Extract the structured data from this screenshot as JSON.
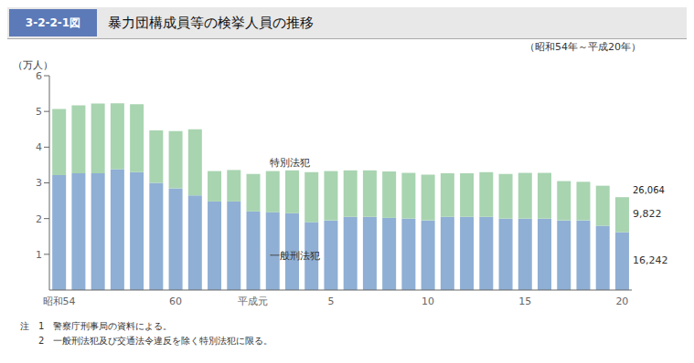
{
  "chart_data": {
    "type": "bar",
    "stacked": true,
    "title": "暴力団構成員等の検挙人員の推移",
    "subtitle": "（昭和54年～平成20年）",
    "y_label": "（万人）",
    "annotations": [
      "3-2-2-1図",
      "注　1　警察庁刑事局の資料による。",
      "　　2　一般刑法犯及び交通法令違反を除く特別法犯に限る。",
      "26,064",
      "9,822",
      "16,242"
    ],
    "categories": [
      "昭和54",
      null,
      null,
      null,
      null,
      null,
      "60",
      null,
      null,
      null,
      "平成元",
      null,
      null,
      null,
      "5",
      null,
      null,
      null,
      null,
      "10",
      null,
      null,
      null,
      null,
      "15",
      null,
      null,
      null,
      null,
      "20"
    ],
    "series": [
      {
        "name": "一般刑法犯",
        "color": "#8fafd4",
        "values": [
          3.22,
          3.27,
          3.27,
          3.38,
          3.3,
          3.0,
          2.85,
          2.65,
          2.48,
          2.48,
          2.2,
          2.18,
          2.15,
          1.9,
          1.95,
          2.05,
          2.05,
          2.02,
          2.0,
          1.95,
          2.05,
          2.05,
          2.05,
          2.0,
          2.0,
          2.0,
          1.95,
          1.95,
          1.8,
          1.62
        ]
      },
      {
        "name": "特別法犯",
        "color": "#a8d4b0",
        "values": [
          1.85,
          1.9,
          1.95,
          1.85,
          1.9,
          1.47,
          1.6,
          1.85,
          0.85,
          0.88,
          1.05,
          1.15,
          1.2,
          1.4,
          1.38,
          1.3,
          1.3,
          1.3,
          1.28,
          1.28,
          1.22,
          1.22,
          1.25,
          1.25,
          1.28,
          1.28,
          1.1,
          1.08,
          1.12,
          0.98
        ]
      }
    ],
    "ylim": [
      0,
      6
    ],
    "yticks": [
      1,
      2,
      3,
      4,
      5,
      6
    ],
    "grid": false
  }
}
